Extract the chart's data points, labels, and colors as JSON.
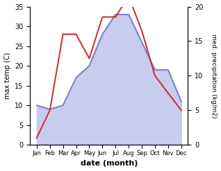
{
  "months": [
    "Jan",
    "Feb",
    "Mar",
    "Apr",
    "May",
    "Jun",
    "Jul",
    "Aug",
    "Sep",
    "Oct",
    "Nov",
    "Dec"
  ],
  "month_x": [
    1,
    2,
    3,
    4,
    5,
    6,
    7,
    8,
    9,
    10,
    11,
    12
  ],
  "temp": [
    10,
    9,
    10,
    17,
    20,
    28,
    33,
    33,
    26,
    19,
    19,
    11
  ],
  "precip": [
    1.0,
    5.0,
    16.0,
    16.0,
    12.5,
    18.5,
    18.5,
    21.5,
    16.5,
    10.0,
    7.5,
    5.0
  ],
  "temp_color": "#8080c0",
  "temp_fill_color": "#c8ccee",
  "precip_color": "#cc3333",
  "temp_ylim": [
    0,
    35
  ],
  "precip_ylim": [
    0,
    21.875
  ],
  "ylabel_left": "max temp (C)",
  "ylabel_right": "med. precipitation (kg/m2)",
  "xlabel": "date (month)",
  "bg_color": "#ffffff",
  "right_yticks": [
    0,
    5,
    10,
    15,
    20
  ],
  "left_yticks": [
    0,
    5,
    10,
    15,
    20,
    25,
    30,
    35
  ]
}
